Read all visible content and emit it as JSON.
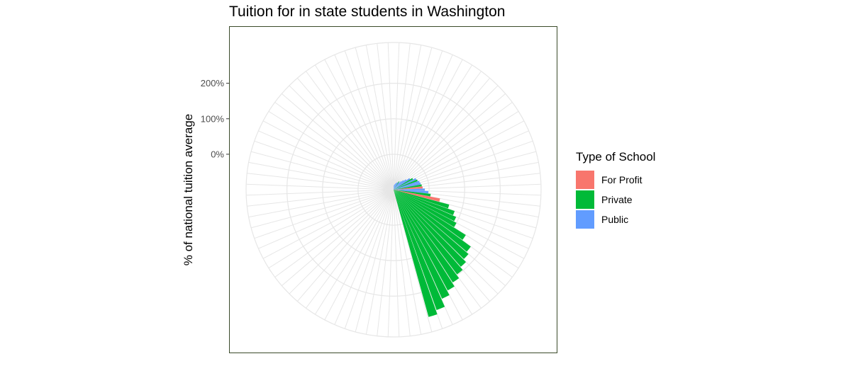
{
  "title": "Tuition for in state students in Washington",
  "chart_data": {
    "type": "bar",
    "coord": "polar",
    "title": "Tuition for in state students in Washington",
    "xlabel": "",
    "ylabel": "% of national tuition average",
    "y_ticks": [
      {
        "value": 0,
        "label": "0%"
      },
      {
        "value": 100,
        "label": "100%"
      },
      {
        "value": 200,
        "label": "200%"
      }
    ],
    "ylim": [
      -100,
      315
    ],
    "n_slots": 84,
    "grid": true,
    "legend": {
      "title": "Type of School",
      "position": "right",
      "entries": [
        {
          "label": "For Profit",
          "color": "#F8766D"
        },
        {
          "label": "Private",
          "color": "#00BA38"
        },
        {
          "label": "Public",
          "color": "#619CFF"
        }
      ]
    },
    "bars": [
      {
        "slot": 0,
        "type": "Public",
        "value": -88
      },
      {
        "slot": 1,
        "type": "Public",
        "value": -86
      },
      {
        "slot": 2,
        "type": "Public",
        "value": -84
      },
      {
        "slot": 3,
        "type": "Public",
        "value": -82
      },
      {
        "slot": 4,
        "type": "Public",
        "value": -80
      },
      {
        "slot": 5,
        "type": "Public",
        "value": -78
      },
      {
        "slot": 6,
        "type": "Public",
        "value": -76
      },
      {
        "slot": 7,
        "type": "Private",
        "value": -72
      },
      {
        "slot": 8,
        "type": "Public",
        "value": -74
      },
      {
        "slot": 9,
        "type": "Public",
        "value": -68
      },
      {
        "slot": 10,
        "type": "Public",
        "value": -62
      },
      {
        "slot": 11,
        "type": "Public",
        "value": -55
      },
      {
        "slot": 12,
        "type": "Public",
        "value": -45
      },
      {
        "slot": 13,
        "type": "Private",
        "value": -38
      },
      {
        "slot": 14,
        "type": "Public",
        "value": -30
      },
      {
        "slot": 15,
        "type": "Private",
        "value": -28
      },
      {
        "slot": 16,
        "type": "Public",
        "value": -24
      },
      {
        "slot": 17,
        "type": "Public",
        "value": -22
      },
      {
        "slot": 18,
        "type": "Private",
        "value": -20
      },
      {
        "slot": 19,
        "type": "For Profit",
        "value": -18
      },
      {
        "slot": 20,
        "type": "Public",
        "value": -12
      },
      {
        "slot": 21,
        "type": "Public",
        "value": -2
      },
      {
        "slot": 22,
        "type": "Private",
        "value": 5
      },
      {
        "slot": 23,
        "type": "For Profit",
        "value": 33
      },
      {
        "slot": 24,
        "type": "Private",
        "value": 62
      },
      {
        "slot": 25,
        "type": "Private",
        "value": 82
      },
      {
        "slot": 26,
        "type": "Private",
        "value": 92
      },
      {
        "slot": 27,
        "type": "Private",
        "value": 100
      },
      {
        "slot": 28,
        "type": "Private",
        "value": 140
      },
      {
        "slot": 29,
        "type": "Private",
        "value": 170
      },
      {
        "slot": 30,
        "type": "Private",
        "value": 178
      },
      {
        "slot": 31,
        "type": "Private",
        "value": 188
      },
      {
        "slot": 32,
        "type": "Private",
        "value": 198
      },
      {
        "slot": 33,
        "type": "Private",
        "value": 210
      },
      {
        "slot": 34,
        "type": "Private",
        "value": 222
      },
      {
        "slot": 35,
        "type": "Private",
        "value": 236
      },
      {
        "slot": 36,
        "type": "Private",
        "value": 260
      },
      {
        "slot": 37,
        "type": "Private",
        "value": 272
      }
    ]
  }
}
